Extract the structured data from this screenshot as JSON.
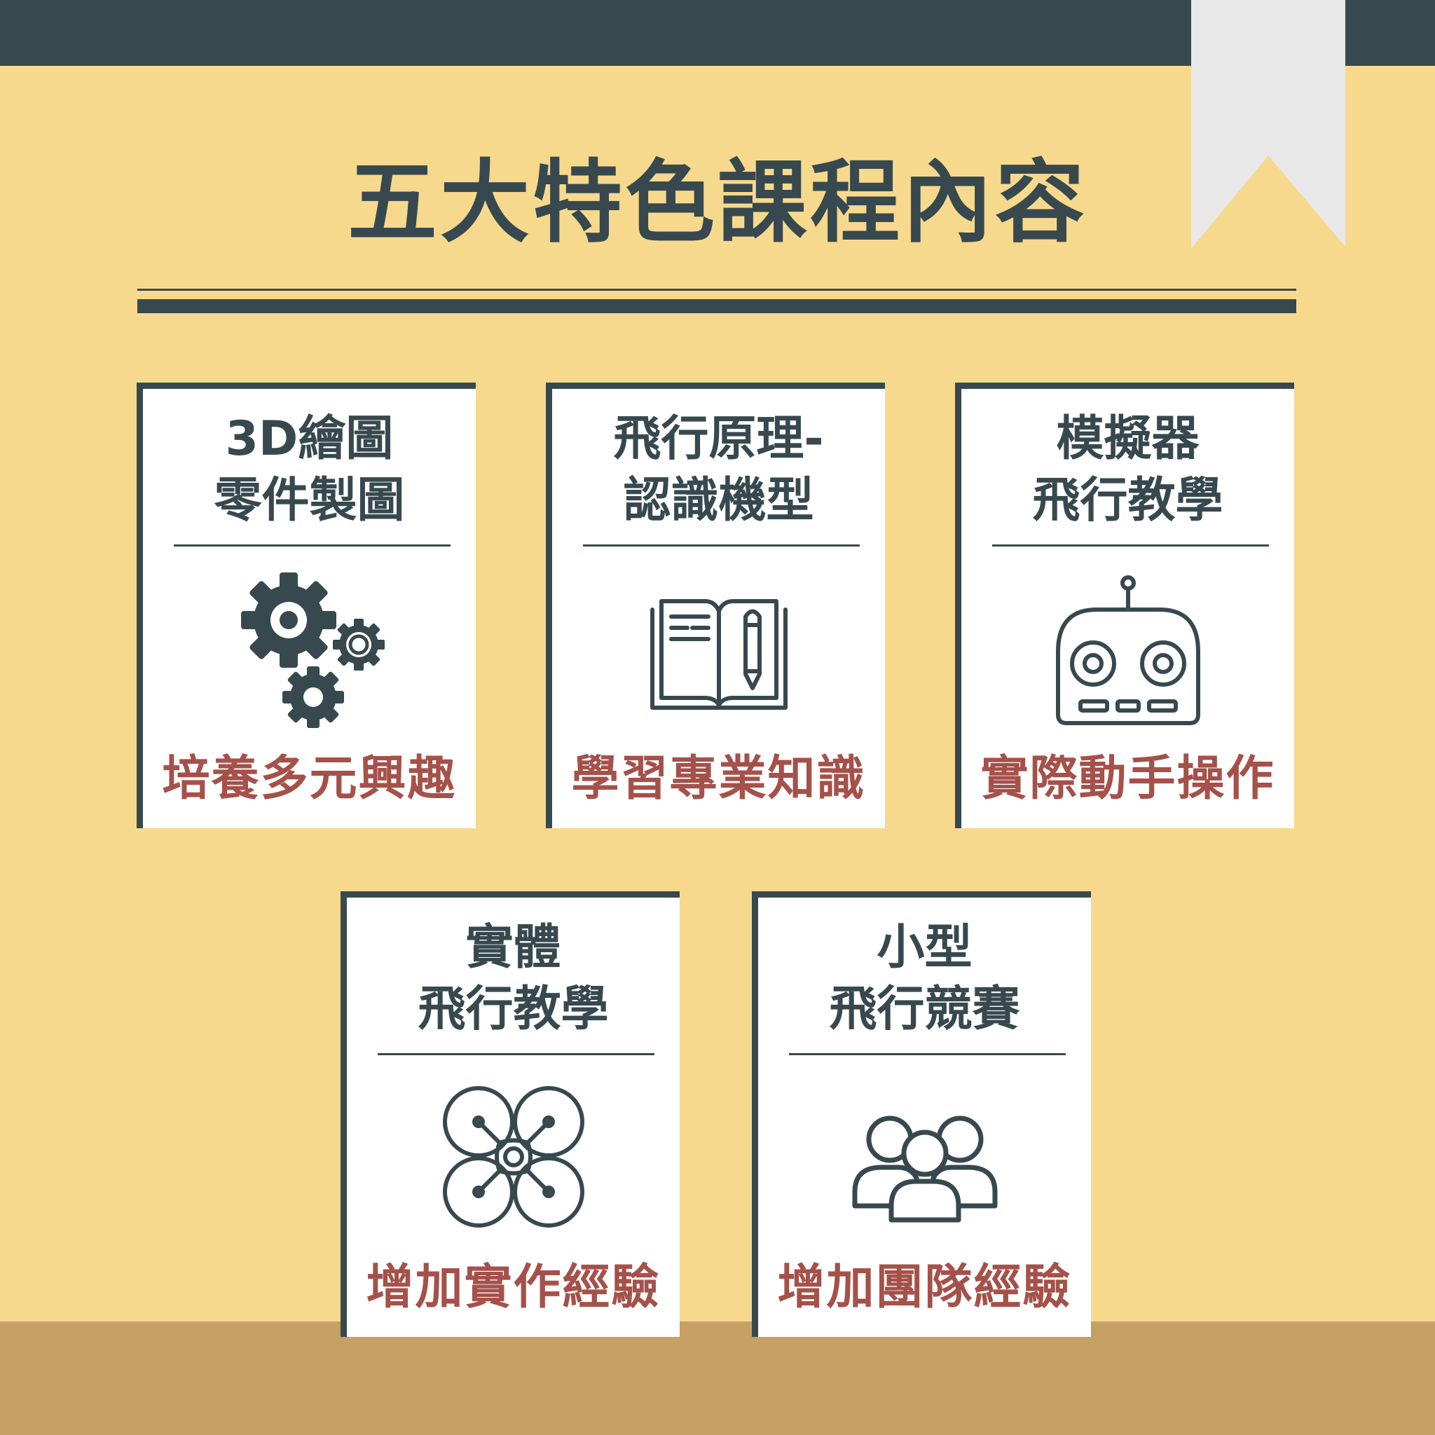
{
  "colors": {
    "background": "#F7D98D",
    "dark": "#37494F",
    "accent": "#A5514A",
    "band": "#C6A064",
    "card": "#FFFFFF",
    "ribbon": "#E8E8E8"
  },
  "title": "五大特色課程內容",
  "cards": [
    {
      "title_line1": "3D繪圖",
      "title_line2": "零件製圖",
      "icon": "gears-icon",
      "footer": "培養多元興趣"
    },
    {
      "title_line1": "飛行原理-",
      "title_line2": "認識機型",
      "icon": "book-pencil-icon",
      "footer": "學習專業知識"
    },
    {
      "title_line1": "模擬器",
      "title_line2": "飛行教學",
      "icon": "remote-controller-icon",
      "footer": "實際動手操作"
    },
    {
      "title_line1": "實體",
      "title_line2": "飛行教學",
      "icon": "drone-icon",
      "footer": "增加實作經驗"
    },
    {
      "title_line1": "小型",
      "title_line2": "飛行競賽",
      "icon": "team-icon",
      "footer": "增加團隊經驗"
    }
  ]
}
